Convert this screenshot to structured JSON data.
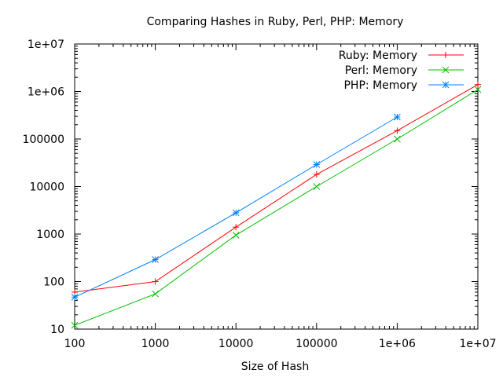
{
  "chart_data": {
    "type": "line",
    "title": "Comparing Hashes in Ruby, Perl, PHP: Memory",
    "xlabel": "Size of Hash",
    "ylabel": "",
    "x_scale": "log",
    "y_scale": "log",
    "xlim": [
      100,
      10000000
    ],
    "ylim": [
      10,
      10000000
    ],
    "x_ticks": [
      {
        "value": 100,
        "label": "100"
      },
      {
        "value": 1000,
        "label": "1000"
      },
      {
        "value": 10000,
        "label": "10000"
      },
      {
        "value": 100000,
        "label": "100000"
      },
      {
        "value": 1000000,
        "label": "1e+06"
      },
      {
        "value": 10000000,
        "label": "1e+07"
      }
    ],
    "y_ticks": [
      {
        "value": 10,
        "label": "10"
      },
      {
        "value": 100,
        "label": "100"
      },
      {
        "value": 1000,
        "label": "1000"
      },
      {
        "value": 10000,
        "label": "10000"
      },
      {
        "value": 100000,
        "label": "100000"
      },
      {
        "value": 1000000,
        "label": "1e+06"
      },
      {
        "value": 10000000,
        "label": "1e+07"
      }
    ],
    "grid": false,
    "legend_position": "top-right",
    "series": [
      {
        "name": "Ruby: Memory",
        "color": "#ff0000",
        "marker": "plus",
        "points": [
          [
            100,
            60
          ],
          [
            1000,
            100
          ],
          [
            10000,
            1400
          ],
          [
            100000,
            18000
          ],
          [
            1000000,
            150000
          ],
          [
            10000000,
            1400000
          ]
        ]
      },
      {
        "name": "Perl: Memory",
        "color": "#00c000",
        "marker": "cross",
        "points": [
          [
            100,
            12
          ],
          [
            1000,
            55
          ],
          [
            10000,
            950
          ],
          [
            100000,
            10000
          ],
          [
            1000000,
            100000
          ],
          [
            10000000,
            1100000
          ]
        ]
      },
      {
        "name": "PHP: Memory",
        "color": "#0080ff",
        "marker": "star",
        "points": [
          [
            100,
            47
          ],
          [
            1000,
            290
          ],
          [
            10000,
            2800
          ],
          [
            100000,
            29000
          ],
          [
            1000000,
            290000
          ]
        ]
      }
    ]
  }
}
